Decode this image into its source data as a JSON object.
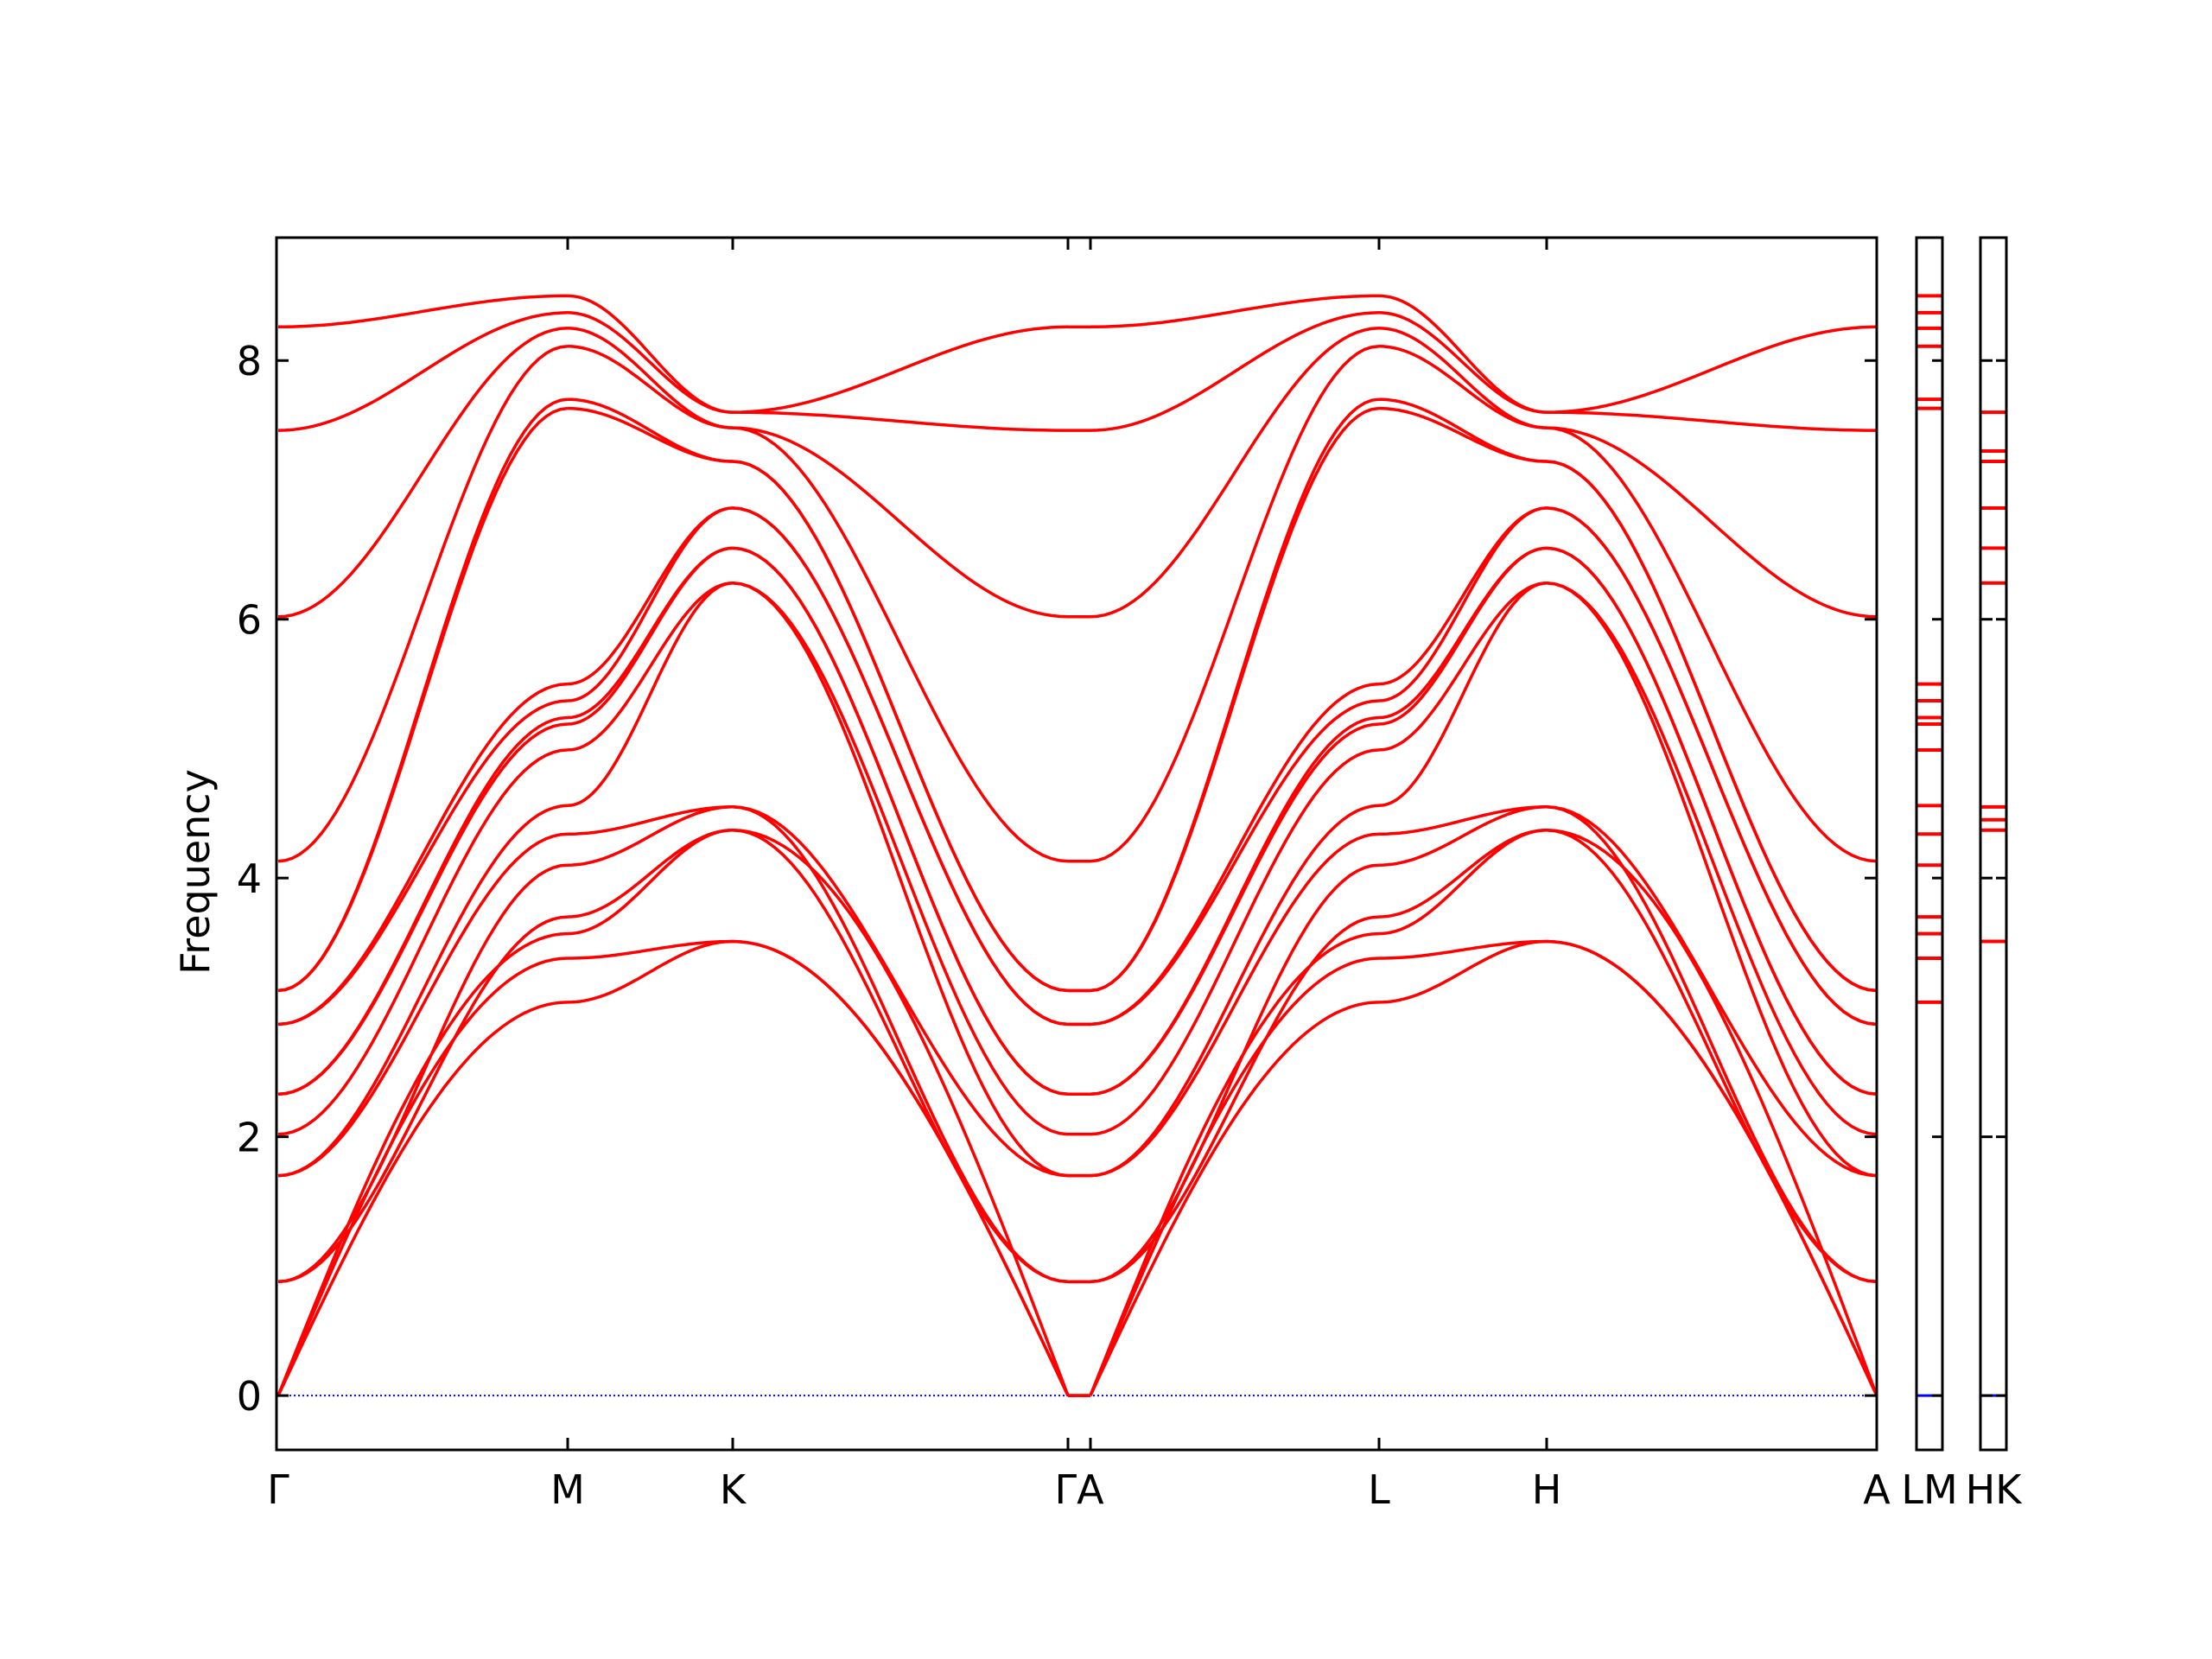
{
  "chart_data": {
    "type": "line",
    "title": "",
    "xlabel": "",
    "ylabel": "Frequency",
    "ylim": [
      -0.42,
      8.95
    ],
    "y_ticks": [
      0,
      2,
      4,
      6,
      8
    ],
    "grid": false,
    "colors": {
      "bands": "#ff0000",
      "zero_line": "#0000ff",
      "axes": "#000000"
    },
    "path_segments": [
      {
        "name": "Γ–M–K–Γ",
        "points": [
          "Γ",
          "M",
          "K",
          "Γ"
        ]
      },
      {
        "name": "A–L–H–A",
        "points": [
          "A",
          "L",
          "H",
          "A"
        ]
      },
      {
        "name": "L–M",
        "points": [
          "L",
          "M"
        ]
      },
      {
        "name": "H–K",
        "points": [
          "H",
          "K"
        ]
      }
    ],
    "x_ticks": [
      {
        "label": "Γ"
      },
      {
        "label": "M"
      },
      {
        "label": "K"
      },
      {
        "label": "ΓA"
      },
      {
        "label": "L"
      },
      {
        "label": "H"
      },
      {
        "label": "A"
      },
      {
        "label": "LM"
      },
      {
        "label": "HK"
      }
    ],
    "band_count": 18,
    "special_point_frequencies": {
      "Γ": [
        0,
        0,
        0,
        0.88,
        0.88,
        1.7,
        1.7,
        2.02,
        2.33,
        2.33,
        2.87,
        2.87,
        3.13,
        3.13,
        4.13,
        6.02,
        7.46,
        8.26
      ],
      "M": [
        3.04,
        3.38,
        3.57,
        3.7,
        4.1,
        4.34,
        4.56,
        4.99,
        5.19,
        5.24,
        5.37,
        5.5,
        7.63,
        7.7,
        8.11,
        8.25,
        8.37,
        8.5
      ],
      "K": [
        3.51,
        3.51,
        4.37,
        4.37,
        4.55,
        4.55,
        6.28,
        6.28,
        6.55,
        6.55,
        6.86,
        6.86,
        7.22,
        7.22,
        7.48,
        7.48,
        7.6,
        7.6
      ],
      "A": [
        0,
        0,
        0,
        0.88,
        0.88,
        1.7,
        1.7,
        2.02,
        2.33,
        2.33,
        2.87,
        2.87,
        3.13,
        3.13,
        4.13,
        6.02,
        7.46,
        8.26
      ],
      "L": [
        3.04,
        3.38,
        3.57,
        3.7,
        4.1,
        4.34,
        4.56,
        4.99,
        5.19,
        5.24,
        5.37,
        5.5,
        7.63,
        7.7,
        8.11,
        8.25,
        8.37,
        8.5
      ],
      "H": [
        3.51,
        3.51,
        4.37,
        4.37,
        4.55,
        4.55,
        6.28,
        6.28,
        6.55,
        6.55,
        6.86,
        6.86,
        7.22,
        7.22,
        7.48,
        7.48,
        7.6,
        7.6
      ]
    },
    "line_MA_ticks": [
      3.04,
      3.38,
      3.57,
      3.7,
      4.1,
      4.34,
      4.56,
      4.99,
      5.19,
      5.24,
      5.37,
      5.5,
      7.63,
      7.7,
      8.11,
      8.25,
      8.37,
      8.5
    ],
    "line_KH_ticks": [
      3.51,
      4.37,
      4.45,
      4.55,
      6.28,
      6.55,
      6.86,
      7.22,
      7.3,
      7.6
    ]
  }
}
